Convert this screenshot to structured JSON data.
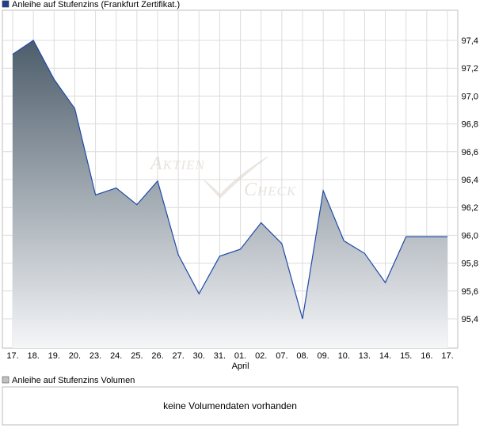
{
  "price_chart": {
    "legend_label": "Anleihe auf Stufenzins (Frankfurt Zertifikat.)",
    "legend_color": "#1f3f8f",
    "watermark": {
      "line1": "Aktien",
      "line2": "Check"
    }
  },
  "volume_chart": {
    "legend_label": "Anleihe auf Stufenzins Volumen",
    "legend_color": "#c0c0c0",
    "no_data_text": "keine Volumendaten vorhanden"
  },
  "chart_data": {
    "type": "area",
    "title": "",
    "xlabel": "",
    "ylabel": "",
    "x": [
      "17.",
      "18.",
      "19.",
      "20.",
      "23.",
      "24.",
      "25.",
      "26.",
      "27.",
      "30.",
      "31.",
      "01.",
      "02.",
      "07.",
      "08.",
      "09.",
      "10.",
      "13.",
      "14.",
      "15.",
      "16.",
      "17."
    ],
    "x_sublabels": [
      {
        "index": 11,
        "label": "April"
      }
    ],
    "series": [
      {
        "values": [
          97.3,
          97.4,
          97.12,
          96.91,
          96.29,
          96.34,
          96.22,
          96.39,
          95.86,
          95.58,
          95.85,
          95.9,
          96.09,
          95.94,
          95.4,
          96.32,
          95.96,
          95.87,
          95.66,
          95.99,
          95.99,
          95.99
        ],
        "line_color": "#1f4aa8",
        "fill_top_color": "#4d5d6b",
        "fill_bottom_color": "#f5f6f8"
      }
    ],
    "ylim": [
      95.2,
      97.6
    ],
    "yticks": [
      95.4,
      95.6,
      95.8,
      96.0,
      96.2,
      96.4,
      96.6,
      96.8,
      97.0,
      97.2,
      97.4
    ],
    "ytick_labels": [
      "95,4",
      "95,6",
      "95,8",
      "96,0",
      "96,2",
      "96,4",
      "96,6",
      "96,8",
      "97,0",
      "97,2",
      "97,4"
    ],
    "grid": true,
    "y_axis_side": "right",
    "legend": "top-left"
  }
}
